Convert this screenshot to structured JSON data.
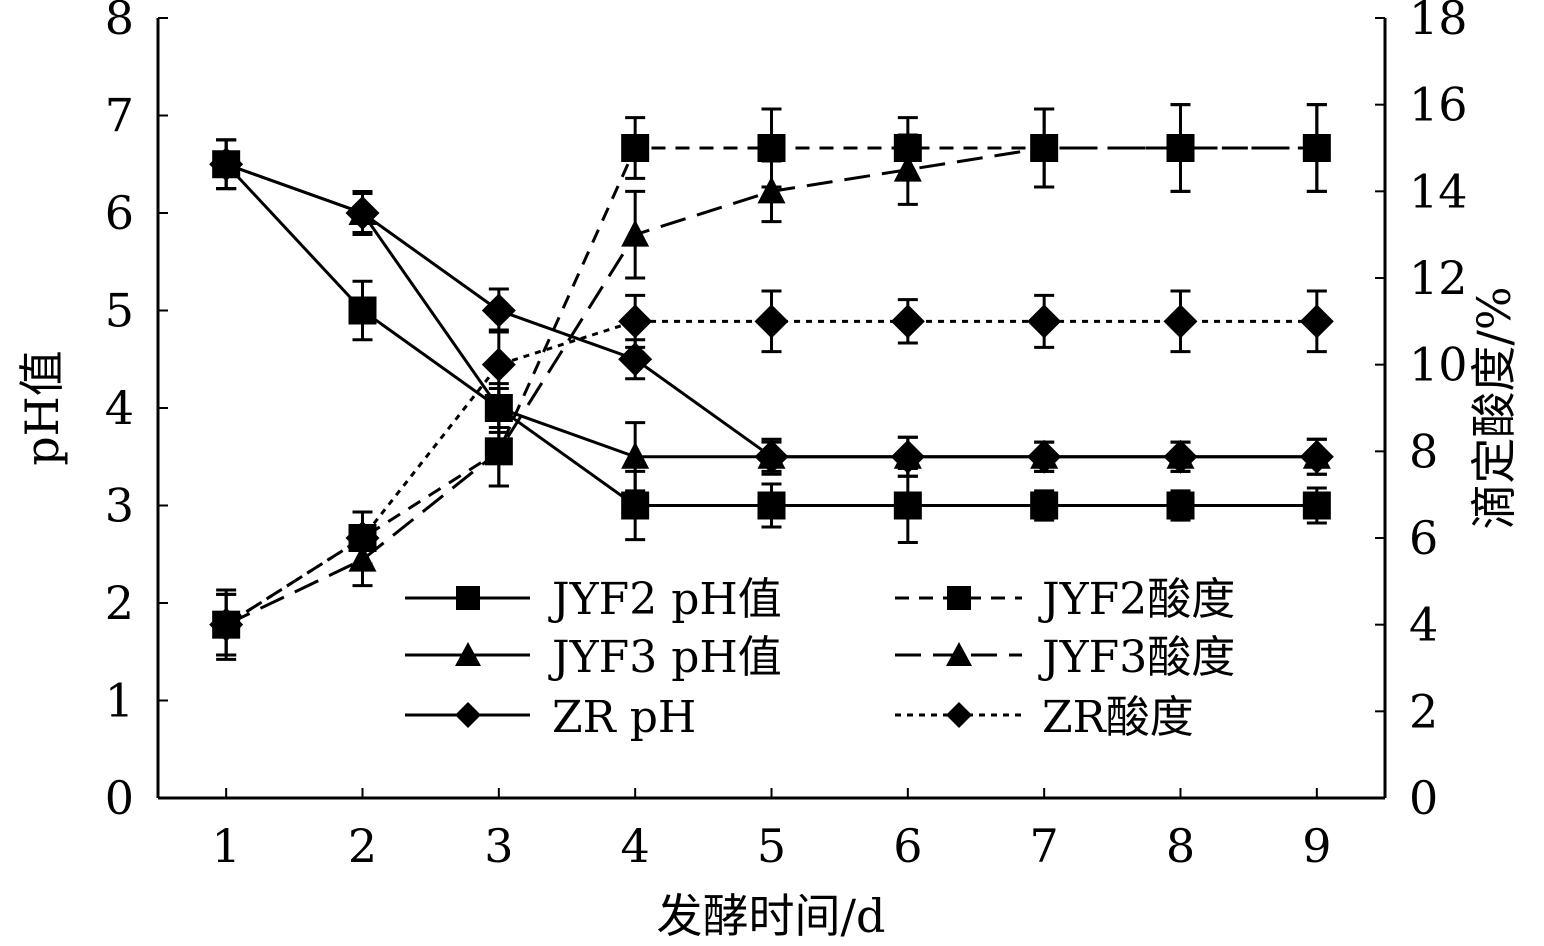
{
  "chart_data": {
    "type": "line",
    "title": "",
    "xlabel": "发酵时间/d",
    "ylabel_left": "pH值",
    "ylabel_right": "滴定酸度/%",
    "x": [
      1,
      2,
      3,
      4,
      5,
      6,
      7,
      8,
      9
    ],
    "xlim": [
      0.5,
      9.5
    ],
    "ylim_left": [
      0,
      8
    ],
    "ylim_right": [
      0,
      18
    ],
    "x_ticks": [
      "1",
      "2",
      "3",
      "4",
      "5",
      "6",
      "7",
      "8",
      "9"
    ],
    "y_ticks_left": [
      "0",
      "1",
      "2",
      "3",
      "4",
      "5",
      "6",
      "7",
      "8"
    ],
    "y_ticks_right": [
      "0",
      "2",
      "4",
      "6",
      "8",
      "10",
      "12",
      "14",
      "16",
      "18"
    ],
    "grid": false,
    "legend_position": "bottom-center",
    "series": [
      {
        "name": "JYF2 pH值",
        "axis": "left",
        "marker": "square",
        "line": "solid",
        "values": [
          6.5,
          5.0,
          4.0,
          3.0,
          3.0,
          3.0,
          3.0,
          3.0,
          3.0
        ],
        "errors": [
          0.25,
          0.3,
          0.25,
          0.35,
          0.22,
          0.38,
          0.15,
          0.15,
          0.18
        ]
      },
      {
        "name": "JYF3 pH值",
        "axis": "left",
        "marker": "triangle",
        "line": "solid",
        "values": [
          6.5,
          6.0,
          4.0,
          3.5,
          3.5,
          3.5,
          3.5,
          3.5,
          3.5
        ],
        "errors": [
          0.25,
          0.2,
          0.2,
          0.35,
          0.18,
          0.2,
          0.15,
          0.15,
          0.18
        ]
      },
      {
        "name": "ZR pH",
        "axis": "left",
        "marker": "diamond",
        "line": "solid",
        "values": [
          6.5,
          6.0,
          5.0,
          4.5,
          3.5,
          3.5,
          3.5,
          3.5,
          3.5
        ],
        "errors": [
          0.25,
          0.22,
          0.22,
          0.2,
          0.15,
          0.2,
          0.15,
          0.15,
          0.18
        ]
      },
      {
        "name": "JYF2酸度",
        "axis": "right",
        "marker": "square",
        "line": "dashed",
        "values": [
          4.0,
          6.0,
          8.0,
          15.0,
          15.0,
          15.0,
          15.0,
          15.0,
          15.0
        ],
        "errors": [
          0.8,
          0.6,
          0.8,
          0.7,
          0.9,
          0.7,
          0.9,
          1.0,
          1.0
        ]
      },
      {
        "name": "JYF3酸度",
        "axis": "right",
        "marker": "triangle",
        "line": "longdash",
        "values": [
          4.0,
          5.5,
          8.0,
          13.0,
          14.0,
          14.5,
          15.0,
          15.0,
          15.0
        ],
        "errors": [
          0.7,
          0.6,
          0.8,
          1.0,
          0.7,
          0.8,
          0.9,
          1.0,
          1.0
        ]
      },
      {
        "name": "ZR酸度",
        "axis": "right",
        "marker": "diamond",
        "line": "dotted",
        "values": [
          4.0,
          6.0,
          10.0,
          11.0,
          11.0,
          11.0,
          11.0,
          11.0,
          11.0
        ],
        "errors": [
          0.7,
          0.6,
          0.8,
          0.6,
          0.7,
          0.5,
          0.6,
          0.7,
          0.7
        ]
      }
    ]
  }
}
